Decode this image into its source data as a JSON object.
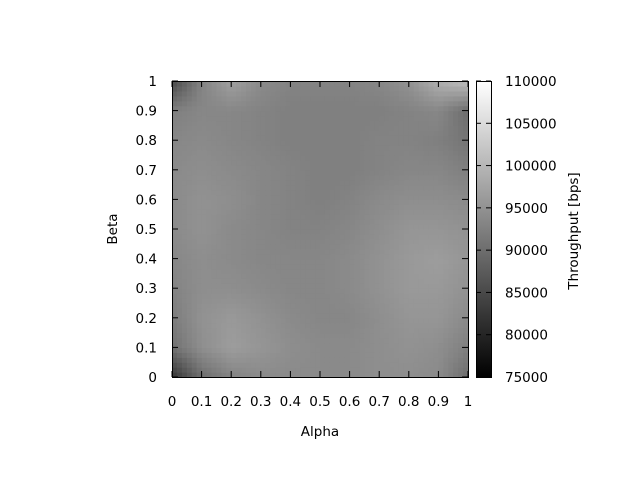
{
  "chart_data": {
    "type": "heatmap",
    "title": "",
    "xlabel": "Alpha",
    "ylabel": "Beta",
    "xlim": [
      0,
      1
    ],
    "ylim": [
      0,
      1
    ],
    "x_ticks": [
      "0",
      "0.1",
      "0.2",
      "0.3",
      "0.4",
      "0.5",
      "0.6",
      "0.7",
      "0.8",
      "0.9",
      "1"
    ],
    "y_ticks": [
      "0",
      "0.1",
      "0.2",
      "0.3",
      "0.4",
      "0.5",
      "0.6",
      "0.7",
      "0.8",
      "0.9",
      "1"
    ],
    "colorbar": {
      "label": "Throughput [bps]",
      "range": [
        75000,
        110000
      ],
      "ticks": [
        "75000",
        "80000",
        "85000",
        "90000",
        "95000",
        "100000",
        "105000",
        "110000"
      ],
      "colormap": "grayscale"
    },
    "grid_x": [
      0,
      0.1,
      0.2,
      0.3,
      0.4,
      0.5,
      0.6,
      0.7,
      0.8,
      0.9,
      1
    ],
    "grid_y": [
      0,
      0.1,
      0.2,
      0.3,
      0.4,
      0.5,
      0.6,
      0.7,
      0.8,
      0.9,
      1
    ],
    "z": [
      [
        82000,
        90000,
        93000,
        94000,
        94000,
        94000,
        94000,
        94500,
        94500,
        94000,
        90000
      ],
      [
        90500,
        94500,
        96500,
        95500,
        94500,
        94000,
        94000,
        94500,
        95000,
        94500,
        92500
      ],
      [
        92000,
        95000,
        96000,
        95000,
        94000,
        93500,
        93500,
        94500,
        95500,
        95500,
        94000
      ],
      [
        93000,
        94500,
        94500,
        94000,
        93500,
        93500,
        94000,
        95000,
        96000,
        96000,
        95000
      ],
      [
        93500,
        94500,
        94000,
        93500,
        93500,
        93500,
        94000,
        95000,
        96000,
        96500,
        95500
      ],
      [
        94000,
        95000,
        94000,
        93500,
        93000,
        93000,
        93500,
        94500,
        95500,
        95500,
        95000
      ],
      [
        94000,
        95000,
        94500,
        93500,
        93000,
        92500,
        93000,
        94000,
        94500,
        94500,
        94000
      ],
      [
        94000,
        94500,
        94000,
        93500,
        93000,
        92500,
        92500,
        93000,
        93500,
        93500,
        92500
      ],
      [
        93500,
        94000,
        93500,
        93000,
        92500,
        92500,
        92500,
        93000,
        93000,
        92500,
        91000
      ],
      [
        92500,
        93500,
        93500,
        93000,
        92500,
        92500,
        92500,
        92500,
        93000,
        93500,
        90000
      ],
      [
        85000,
        93000,
        97000,
        94000,
        93000,
        93000,
        93000,
        93500,
        95000,
        99000,
        101000
      ]
    ]
  }
}
